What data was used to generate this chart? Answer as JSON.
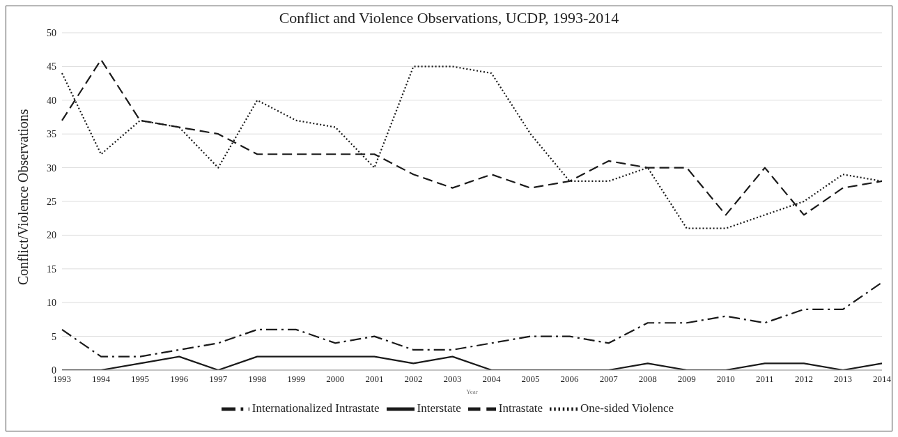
{
  "chart_data": {
    "type": "line",
    "title": "Conflict and Violence Observations, UCDP, 1993-2014",
    "xlabel": "Year",
    "ylabel": "Conflict/Violence Observations",
    "categories": [
      "1993",
      "1994",
      "1995",
      "1996",
      "1997",
      "1998",
      "1999",
      "2000",
      "2001",
      "2002",
      "2003",
      "2004",
      "2005",
      "2006",
      "2007",
      "2008",
      "2009",
      "2010",
      "2011",
      "2012",
      "2013",
      "2014"
    ],
    "series": [
      {
        "name": "Interstate",
        "color": "#1a1a1a",
        "line_style": "solid",
        "values": [
          0,
          0,
          1,
          2,
          0,
          2,
          2,
          2,
          2,
          1,
          2,
          0,
          0,
          0,
          0,
          1,
          0,
          0,
          1,
          1,
          0,
          1
        ]
      },
      {
        "name": "Intrastate",
        "color": "#1a1a1a",
        "line_style": "dashed",
        "values": [
          37,
          46,
          37,
          36,
          35,
          32,
          32,
          32,
          32,
          29,
          27,
          29,
          27,
          28,
          31,
          30,
          30,
          23,
          30,
          23,
          27,
          28
        ]
      },
      {
        "name": "Internationalized Intrastate",
        "color": "#1a1a1a",
        "line_style": "dashdot",
        "values": [
          6,
          2,
          2,
          3,
          4,
          6,
          6,
          4,
          5,
          3,
          3,
          4,
          5,
          5,
          4,
          7,
          7,
          8,
          7,
          9,
          9,
          13
        ]
      },
      {
        "name": "One-sided Violence",
        "color": "#1a1a1a",
        "line_style": "dotted",
        "values": [
          44,
          32,
          37,
          36,
          30,
          40,
          37,
          36,
          30,
          45,
          45,
          44,
          35,
          28,
          28,
          30,
          21,
          21,
          23,
          25,
          29,
          28
        ]
      }
    ],
    "ylim": [
      0,
      50
    ],
    "yticks": [
      0,
      5,
      10,
      15,
      20,
      25,
      30,
      35,
      40,
      45,
      50
    ],
    "grid": "y",
    "legend": "bottom",
    "marker": "none"
  }
}
